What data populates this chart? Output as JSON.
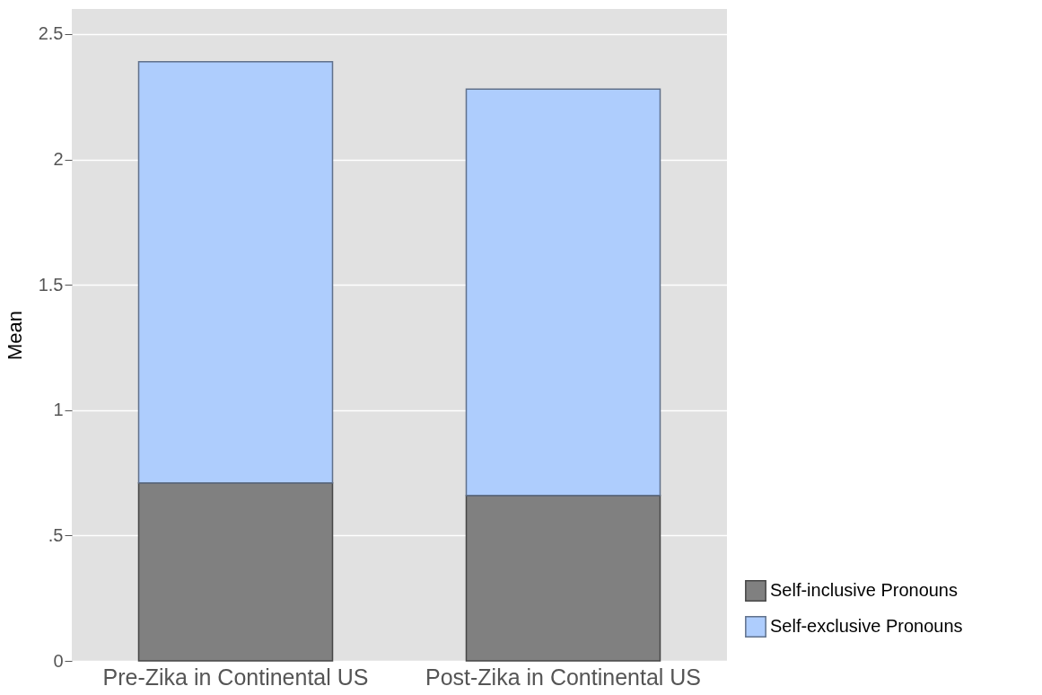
{
  "chart_data": {
    "type": "bar",
    "stacked": true,
    "ylabel": "Mean",
    "categories": [
      "Pre-Zika in Continental US",
      "Post-Zika in Continental US"
    ],
    "series": [
      {
        "name": "Self-inclusive Pronouns",
        "color": "#808080",
        "values": [
          0.71,
          0.66
        ]
      },
      {
        "name": "Self-exclusive Pronouns",
        "color": "#aecdfd",
        "values": [
          1.68,
          1.62
        ]
      }
    ],
    "ylim": [
      0,
      2.6
    ],
    "yticks": [
      0,
      {
        "value": 0.5,
        "label": ".5"
      },
      1,
      1.5,
      2,
      2.5
    ],
    "grid": "y",
    "legend": "bottom right"
  }
}
